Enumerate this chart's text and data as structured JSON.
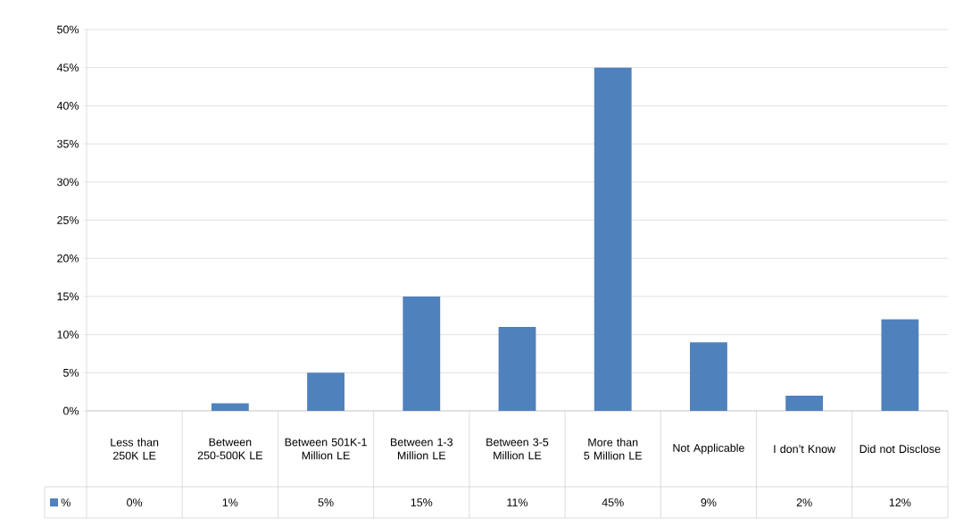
{
  "chart_data": {
    "type": "bar",
    "categories": [
      "Less than 250K LE",
      "Between 250-500K LE",
      "Between 501K-1 Million LE",
      "Between 1-3 Million LE",
      "Between 3-5 Million LE",
      "More than 5 Million LE",
      "Not Applicable",
      "I don’t Know",
      "Did not Disclose"
    ],
    "series": [
      {
        "name": "%",
        "color": "#4f81bd",
        "values": [
          0,
          1,
          5,
          15,
          11,
          45,
          9,
          2,
          12
        ],
        "value_labels": [
          "0%",
          "1%",
          "5%",
          "15%",
          "11%",
          "45%",
          "9%",
          "2%",
          "12%"
        ]
      }
    ],
    "ylim": [
      0,
      50
    ],
    "yticks": [
      {
        "value": 0,
        "label": "0%"
      },
      {
        "value": 5,
        "label": "5%"
      },
      {
        "value": 10,
        "label": "10%"
      },
      {
        "value": 15,
        "label": "15%"
      },
      {
        "value": 20,
        "label": "20%"
      },
      {
        "value": 25,
        "label": "25%"
      },
      {
        "value": 30,
        "label": "30%"
      },
      {
        "value": 35,
        "label": "35%"
      },
      {
        "value": 40,
        "label": "40%"
      },
      {
        "value": 45,
        "label": "45%"
      },
      {
        "value": 50,
        "label": "50%"
      }
    ],
    "grid": "y",
    "legend": "bottom"
  }
}
